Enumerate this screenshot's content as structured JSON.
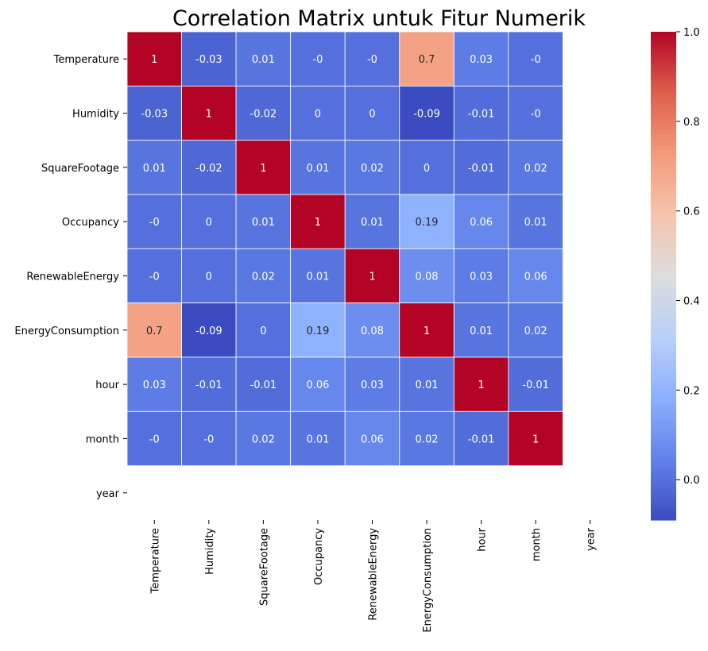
{
  "chart_data": {
    "type": "heatmap",
    "title": "Correlation Matrix untuk Fitur Numerik",
    "rows": [
      "Temperature",
      "Humidity",
      "SquareFootage",
      "Occupancy",
      "RenewableEnergy",
      "EnergyConsumption",
      "hour",
      "month",
      "year"
    ],
    "columns": [
      "Temperature",
      "Humidity",
      "SquareFootage",
      "Occupancy",
      "RenewableEnergy",
      "EnergyConsumption",
      "hour",
      "month",
      "year"
    ],
    "values": [
      [
        1,
        -0.03,
        0.01,
        0,
        0,
        0.7,
        0.03,
        0,
        null
      ],
      [
        -0.03,
        1,
        -0.02,
        0,
        0,
        -0.09,
        -0.01,
        0,
        null
      ],
      [
        0.01,
        -0.02,
        1,
        0.01,
        0.02,
        0,
        -0.01,
        0.02,
        null
      ],
      [
        0,
        0,
        0.01,
        1,
        0.01,
        0.19,
        0.06,
        0.01,
        null
      ],
      [
        0,
        0,
        0.02,
        0.01,
        1,
        0.08,
        0.03,
        0.06,
        null
      ],
      [
        0.7,
        -0.09,
        0,
        0.19,
        0.08,
        1,
        0.01,
        0.02,
        null
      ],
      [
        0.03,
        -0.01,
        -0.01,
        0.06,
        0.03,
        0.01,
        1,
        -0.01,
        null
      ],
      [
        0,
        0,
        0.02,
        0.01,
        0.06,
        0.02,
        -0.01,
        1,
        null
      ],
      [
        null,
        null,
        null,
        null,
        null,
        null,
        null,
        null,
        null
      ]
    ],
    "labels": [
      [
        "1",
        "-0.03",
        "0.01",
        "-0",
        "-0",
        "0.7",
        "0.03",
        "-0",
        ""
      ],
      [
        "-0.03",
        "1",
        "-0.02",
        "0",
        "0",
        "-0.09",
        "-0.01",
        "-0",
        ""
      ],
      [
        "0.01",
        "-0.02",
        "1",
        "0.01",
        "0.02",
        "0",
        "-0.01",
        "0.02",
        ""
      ],
      [
        "-0",
        "0",
        "0.01",
        "1",
        "0.01",
        "0.19",
        "0.06",
        "0.01",
        ""
      ],
      [
        "-0",
        "0",
        "0.02",
        "0.01",
        "1",
        "0.08",
        "0.03",
        "0.06",
        ""
      ],
      [
        "0.7",
        "-0.09",
        "0",
        "0.19",
        "0.08",
        "1",
        "0.01",
        "0.02",
        ""
      ],
      [
        "0.03",
        "-0.01",
        "-0.01",
        "0.06",
        "0.03",
        "0.01",
        "1",
        "-0.01",
        ""
      ],
      [
        "-0",
        "-0",
        "0.02",
        "0.01",
        "0.06",
        "0.02",
        "-0.01",
        "1",
        ""
      ],
      [
        "",
        "",
        "",
        "",
        "",
        "",
        "",
        "",
        ""
      ]
    ],
    "colorbar": {
      "min": -0.09,
      "max": 1.0,
      "ticks": [
        0.0,
        0.2,
        0.4,
        0.6,
        0.8,
        1.0
      ],
      "tick_labels": [
        "0.0",
        "0.2",
        "0.4",
        "0.6",
        "0.8",
        "1.0"
      ],
      "colormap": "coolwarm"
    },
    "grid_line_color": "#ffffff"
  }
}
